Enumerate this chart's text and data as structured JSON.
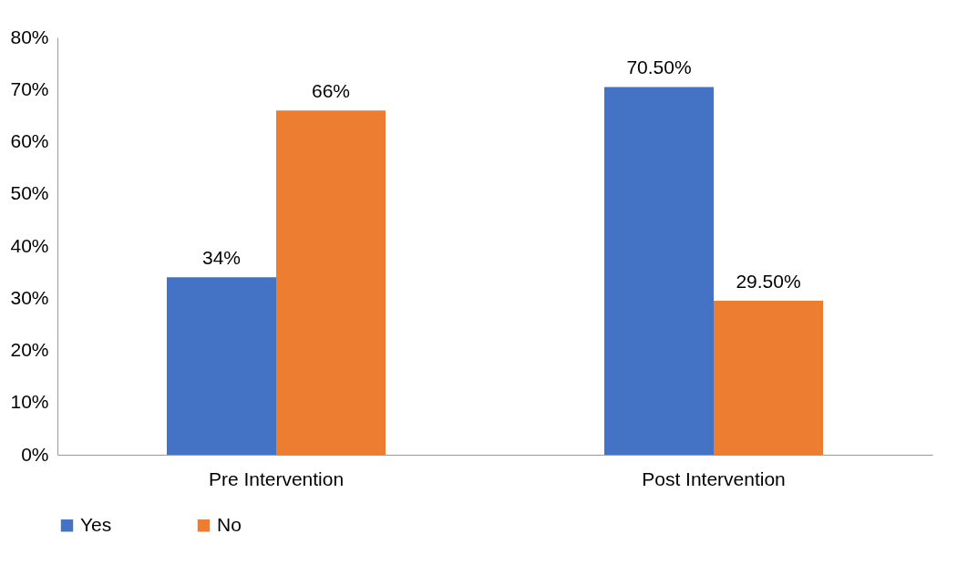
{
  "chart_data": {
    "type": "bar",
    "categories": [
      "Pre Intervention",
      "Post Intervention"
    ],
    "series": [
      {
        "name": "Yes",
        "color": "#4472c4",
        "values": [
          34,
          70.5
        ],
        "value_labels": [
          "34%",
          "70.50%"
        ]
      },
      {
        "name": "No",
        "color": "#ed7d31",
        "values": [
          66,
          29.5
        ],
        "value_labels": [
          "66%",
          "29.50%"
        ]
      }
    ],
    "ylim": [
      0,
      80
    ],
    "yticks": [
      {
        "value": 0,
        "label": "0%"
      },
      {
        "value": 10,
        "label": "10%"
      },
      {
        "value": 20,
        "label": "20%"
      },
      {
        "value": 30,
        "label": "30%"
      },
      {
        "value": 40,
        "label": "40%"
      },
      {
        "value": 50,
        "label": "50%"
      },
      {
        "value": 60,
        "label": "60%"
      },
      {
        "value": 70,
        "label": "70%"
      },
      {
        "value": 80,
        "label": "80%"
      }
    ],
    "legend": "bottom"
  }
}
